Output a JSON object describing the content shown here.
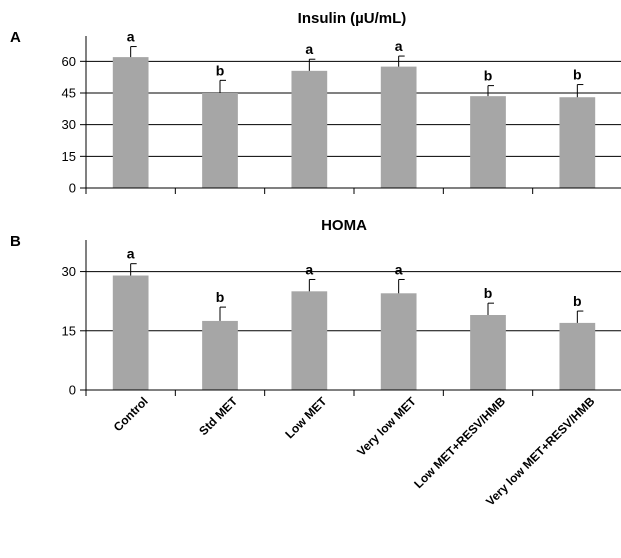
{
  "chart_data": [
    {
      "panel": "A",
      "type": "bar",
      "title": "Insulin (µU/mL)",
      "xlabel": "",
      "ylabel": "",
      "categories": [
        "Control",
        "Std MET",
        "Low MET",
        "Very low MET",
        "Low MET+RESV/HMB",
        "Very low MET+RESV/HMB"
      ],
      "values": [
        62,
        45,
        55.5,
        57.5,
        43.5,
        43
      ],
      "errors": [
        5,
        6,
        5.5,
        5,
        5,
        6
      ],
      "labels": [
        "a",
        "b",
        "a",
        "a",
        "b",
        "b"
      ],
      "yticks": [
        0,
        15,
        30,
        45,
        60
      ],
      "ylim": [
        0,
        72
      ],
      "grid": true,
      "bar_color": "#a6a6a6"
    },
    {
      "panel": "B",
      "type": "bar",
      "title": "HOMA",
      "xlabel": "",
      "ylabel": "",
      "categories": [
        "Control",
        "Std MET",
        "Low MET",
        "Very low MET",
        "Low MET+RESV/HMB",
        "Very low MET+RESV/HMB"
      ],
      "values": [
        29,
        17.5,
        25,
        24.5,
        19,
        17
      ],
      "errors": [
        3,
        3.5,
        3,
        3.5,
        3,
        3
      ],
      "labels": [
        "a",
        "b",
        "a",
        "a",
        "b",
        "b"
      ],
      "yticks": [
        0,
        15,
        30
      ],
      "ylim": [
        0,
        38
      ],
      "grid": true,
      "bar_color": "#a6a6a6"
    }
  ]
}
